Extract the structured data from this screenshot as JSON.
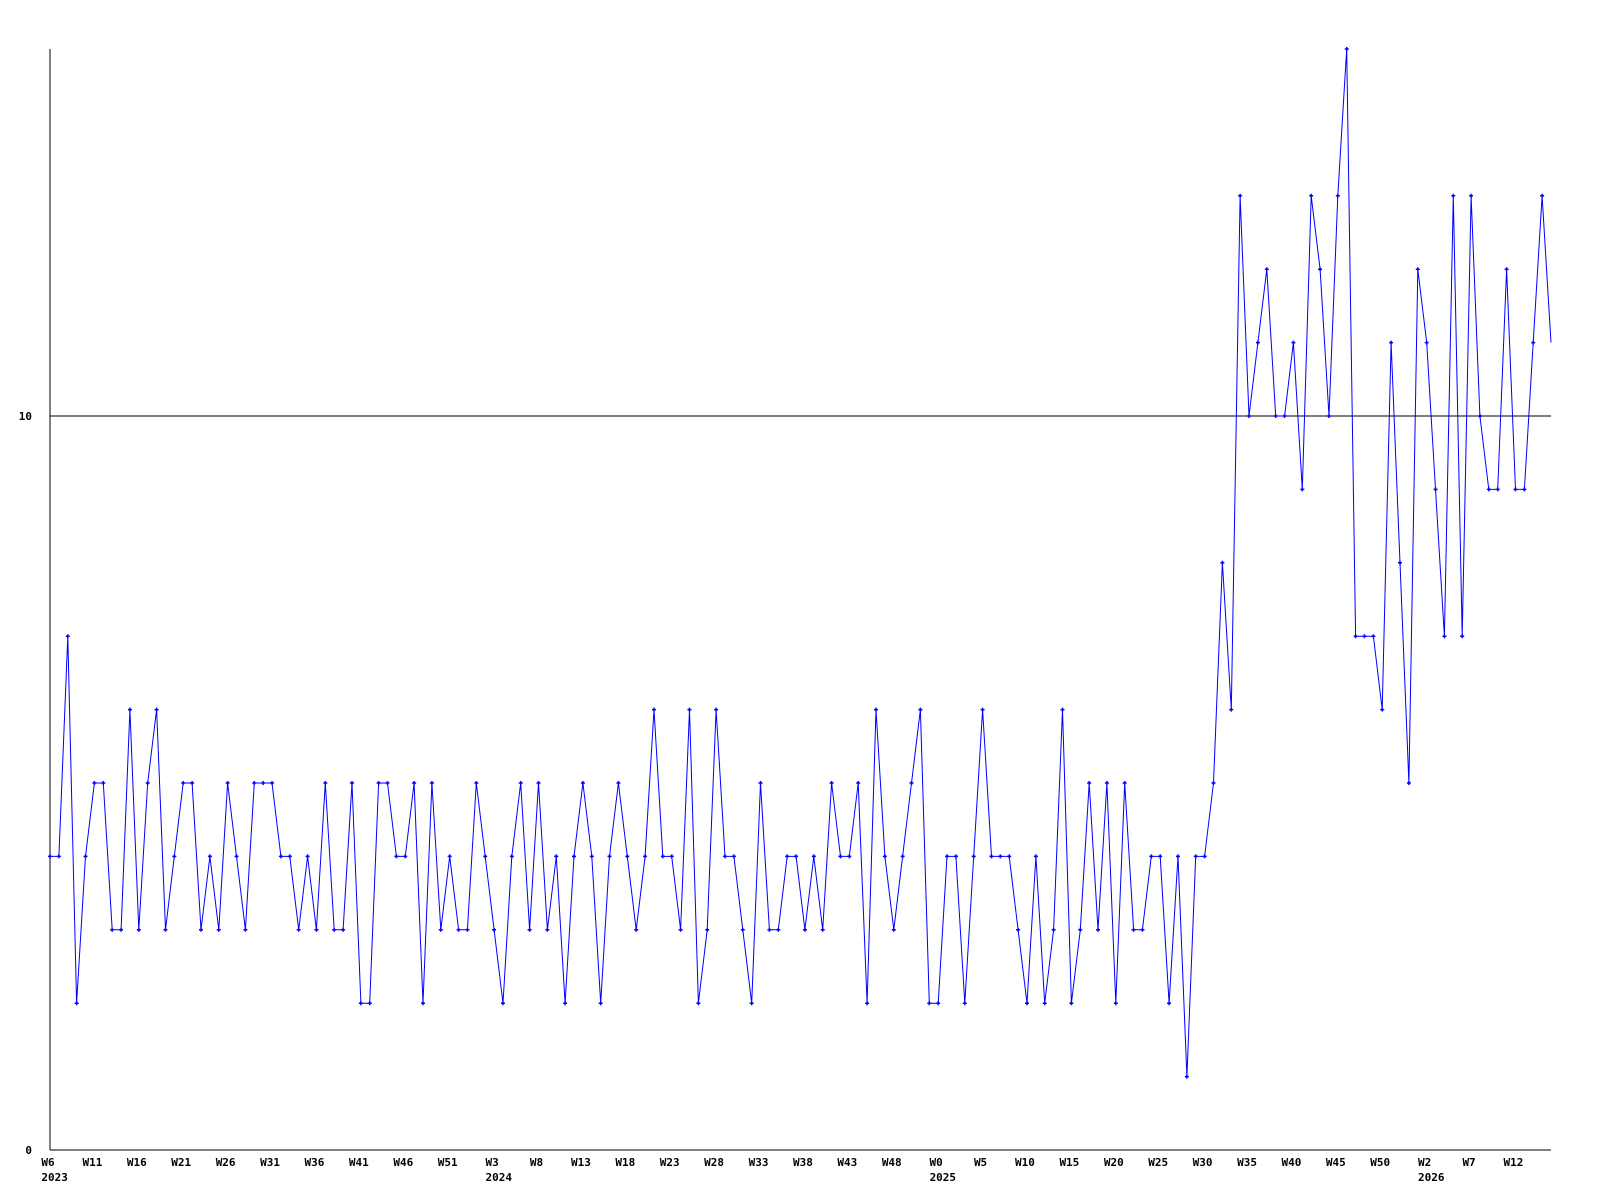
{
  "chart_data": {
    "type": "line",
    "title": "",
    "xlabel": "",
    "ylabel": "",
    "ylim": [
      0,
      15
    ],
    "y_ticks": [
      {
        "value": 0,
        "label": "0"
      },
      {
        "value": 10,
        "label": "10"
      }
    ],
    "reference_line": 10,
    "grid": false,
    "colors": {
      "series": "#0000ff",
      "axis": "#000000",
      "reference": "#000000"
    },
    "x_ticks": [
      {
        "index": 0,
        "label": "W6",
        "year": "2023"
      },
      {
        "index": 5,
        "label": "W11"
      },
      {
        "index": 10,
        "label": "W16"
      },
      {
        "index": 15,
        "label": "W21"
      },
      {
        "index": 20,
        "label": "W26"
      },
      {
        "index": 25,
        "label": "W31"
      },
      {
        "index": 30,
        "label": "W36"
      },
      {
        "index": 35,
        "label": "W41"
      },
      {
        "index": 40,
        "label": "W46"
      },
      {
        "index": 45,
        "label": "W51"
      },
      {
        "index": 50,
        "label": "W3",
        "year": "2024"
      },
      {
        "index": 55,
        "label": "W8"
      },
      {
        "index": 60,
        "label": "W13"
      },
      {
        "index": 65,
        "label": "W18"
      },
      {
        "index": 70,
        "label": "W23"
      },
      {
        "index": 75,
        "label": "W28"
      },
      {
        "index": 80,
        "label": "W33"
      },
      {
        "index": 85,
        "label": "W38"
      },
      {
        "index": 90,
        "label": "W43"
      },
      {
        "index": 95,
        "label": "W48"
      },
      {
        "index": 100,
        "label": "W0",
        "year": "2025"
      },
      {
        "index": 105,
        "label": "W5"
      },
      {
        "index": 110,
        "label": "W10"
      },
      {
        "index": 115,
        "label": "W15"
      },
      {
        "index": 120,
        "label": "W20"
      },
      {
        "index": 125,
        "label": "W25"
      },
      {
        "index": 130,
        "label": "W30"
      },
      {
        "index": 135,
        "label": "W35"
      },
      {
        "index": 140,
        "label": "W40"
      },
      {
        "index": 145,
        "label": "W45"
      },
      {
        "index": 150,
        "label": "W50"
      },
      {
        "index": 155,
        "label": "W2",
        "year": "2026"
      },
      {
        "index": 160,
        "label": "W7"
      },
      {
        "index": 165,
        "label": "W12"
      }
    ],
    "series": [
      {
        "values": [
          4,
          4,
          7,
          2,
          4,
          5,
          5,
          3,
          3,
          6,
          3,
          5,
          6,
          3,
          4,
          5,
          5,
          3,
          4,
          3,
          5,
          4,
          3,
          5,
          5,
          5,
          4,
          4,
          3,
          4,
          3,
          5,
          3,
          3,
          5,
          2,
          2,
          5,
          5,
          4,
          4,
          5,
          2,
          5,
          3,
          4,
          3,
          3,
          5,
          4,
          3,
          2,
          4,
          5,
          3,
          5,
          3,
          4,
          2,
          4,
          5,
          4,
          2,
          4,
          5,
          4,
          3,
          4,
          6,
          4,
          4,
          3,
          6,
          2,
          3,
          6,
          4,
          4,
          3,
          2,
          5,
          3,
          3,
          4,
          4,
          3,
          4,
          3,
          5,
          4,
          4,
          5,
          2,
          6,
          4,
          3,
          4,
          5,
          6,
          2,
          2,
          4,
          4,
          2,
          4,
          6,
          4,
          4,
          4,
          3,
          2,
          4,
          2,
          3,
          6,
          2,
          3,
          5,
          3,
          5,
          2,
          5,
          3,
          3,
          4,
          4,
          2,
          4,
          1,
          4,
          4,
          5,
          8,
          6,
          13,
          10,
          11,
          12,
          10,
          10,
          11,
          9,
          13,
          12,
          10,
          13,
          15,
          7,
          7,
          7,
          6,
          11,
          8,
          5,
          12,
          11,
          9,
          7,
          13,
          7,
          13,
          10,
          9,
          9,
          12,
          9,
          9,
          11,
          13,
          11
        ]
      }
    ]
  }
}
